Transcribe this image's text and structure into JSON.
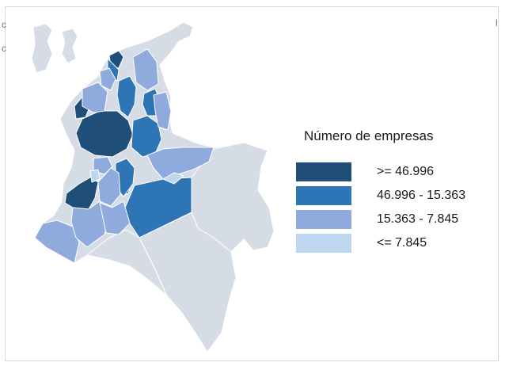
{
  "legend": {
    "title": "Número de empresas",
    "items": [
      {
        "label": ">= 46.996",
        "color": "#1f4e79"
      },
      {
        "label": "46.996 - 15.363",
        "color": "#2e75b6"
      },
      {
        "label": "15.363 - 7.845",
        "color": "#8faadc"
      },
      {
        "label": "<= 7.845",
        "color": "#bdd7ee"
      }
    ]
  },
  "map_colors": {
    "base": "#d6dce5",
    "border": "#ffffff"
  },
  "edge_glyphs": {
    "left_top": "c",
    "left_mid": "c",
    "right_top": "l"
  }
}
